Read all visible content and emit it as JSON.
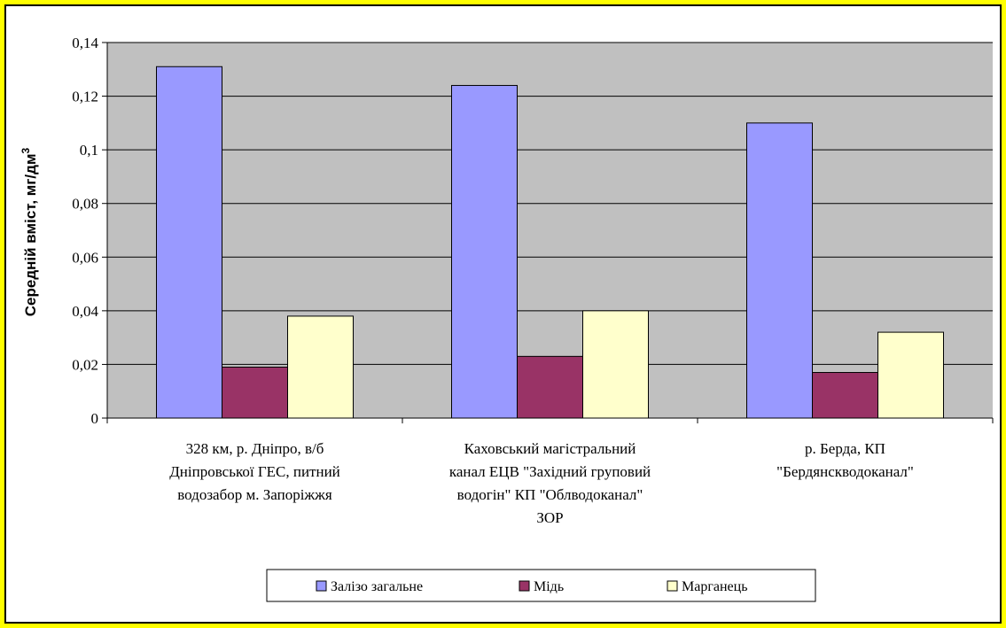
{
  "chart_data": {
    "type": "bar",
    "title": "",
    "xlabel": "",
    "ylabel": "Середній вміст, мг/дм",
    "ylabel_superscript": "3",
    "ylim": [
      0,
      0.14
    ],
    "y_ticks": [
      "0",
      "0,02",
      "0,04",
      "0,06",
      "0,08",
      "0,1",
      "0,12",
      "0,14"
    ],
    "grid": true,
    "legend_position": "bottom",
    "categories": [
      [
        "328 км, р. Дніпро, в/б",
        "Дніпровської ГЕС, питний",
        "водозабор м. Запоріжжя"
      ],
      [
        "Каховський магістральний",
        "канал ЕЦВ \"Західний груповий",
        "водогін\" КП \"Облводоканал\"",
        "ЗОР"
      ],
      [
        "р. Берда, КП",
        "\"Бердянскводоканал\""
      ]
    ],
    "series": [
      {
        "name": "Залізо загальне",
        "color": "#9999ff",
        "values": [
          0.131,
          0.124,
          0.11
        ]
      },
      {
        "name": "Мідь",
        "color": "#993366",
        "values": [
          0.019,
          0.023,
          0.017
        ]
      },
      {
        "name": "Марганець",
        "color": "#ffffcc",
        "values": [
          0.038,
          0.04,
          0.032
        ]
      }
    ],
    "plot_background": "#c0c0c0"
  }
}
